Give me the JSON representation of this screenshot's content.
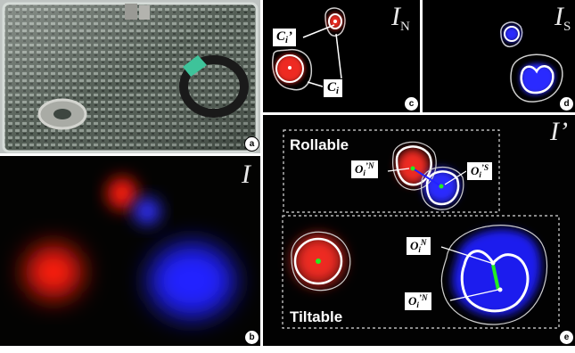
{
  "panels": {
    "a": {
      "badge": "a"
    },
    "b": {
      "badge": "b",
      "label": "I"
    },
    "c": {
      "badge": "c",
      "label": "I",
      "label_sub": "N",
      "tag_ci_prime": {
        "main": "C",
        "sub": "i",
        "mark": "’"
      },
      "tag_ci": {
        "main": "C",
        "sub": "i"
      }
    },
    "d": {
      "badge": "d",
      "label": "I",
      "label_sub": "S"
    },
    "e": {
      "badge": "e",
      "label": "I’",
      "rollable": "Rollable",
      "tiltable": "Tiltable",
      "tag_o_prime_n": {
        "main": "O",
        "sub": "i",
        "sup": "’N"
      },
      "tag_o_prime_s": {
        "main": "O",
        "sub": "i",
        "sup": "’S"
      },
      "tag_o_n": {
        "main": "O",
        "sub": "i",
        "sup": "N"
      },
      "tag_o_prime_n_2": {
        "main": "O",
        "sub": "i",
        "sup": "’N"
      }
    }
  },
  "colors": {
    "north": "#e0261f",
    "south": "#1f2ee0",
    "outline": "#ffffff",
    "center": "#22ee22"
  }
}
